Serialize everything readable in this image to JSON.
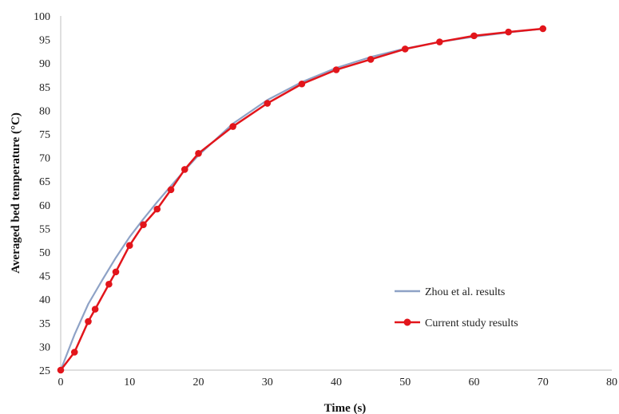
{
  "chart_data": {
    "type": "line",
    "xlabel": "Time (s)",
    "ylabel": "Averaged bed temperature (°C)",
    "xlim": [
      0,
      80
    ],
    "ylim": [
      25,
      100
    ],
    "x_ticks": [
      0,
      10,
      20,
      30,
      40,
      50,
      60,
      70,
      80
    ],
    "y_ticks": [
      25,
      30,
      35,
      40,
      45,
      50,
      55,
      60,
      65,
      70,
      75,
      80,
      85,
      90,
      95,
      100
    ],
    "grid": false,
    "legend_position": "bottom-right",
    "series": [
      {
        "name": "Zhou et al. results",
        "color": "#8ea2c6",
        "marker": "none",
        "x": [
          0,
          2,
          4,
          6,
          8,
          10,
          12,
          14,
          16,
          18,
          20,
          25,
          30,
          35,
          40,
          45,
          50,
          55,
          60,
          65,
          70
        ],
        "y": [
          25,
          32.5,
          39.0,
          44.0,
          48.8,
          53.2,
          57.0,
          60.6,
          64.0,
          67.3,
          70.5,
          77.2,
          82.2,
          86.0,
          89.0,
          91.3,
          93.1,
          94.5,
          95.6,
          96.5,
          97.3
        ]
      },
      {
        "name": "Current study results",
        "color": "#e2151b",
        "marker": "circle",
        "x": [
          0,
          2,
          4,
          5,
          7,
          8,
          10,
          12,
          14,
          16,
          18,
          20,
          25,
          30,
          35,
          40,
          45,
          50,
          55,
          60,
          65,
          70
        ],
        "y": [
          25,
          28.8,
          35.3,
          37.9,
          43.2,
          45.8,
          51.4,
          55.8,
          59.1,
          63.2,
          67.5,
          70.9,
          76.6,
          81.5,
          85.6,
          88.6,
          90.8,
          93.0,
          94.5,
          95.8,
          96.6,
          97.3
        ]
      }
    ]
  }
}
